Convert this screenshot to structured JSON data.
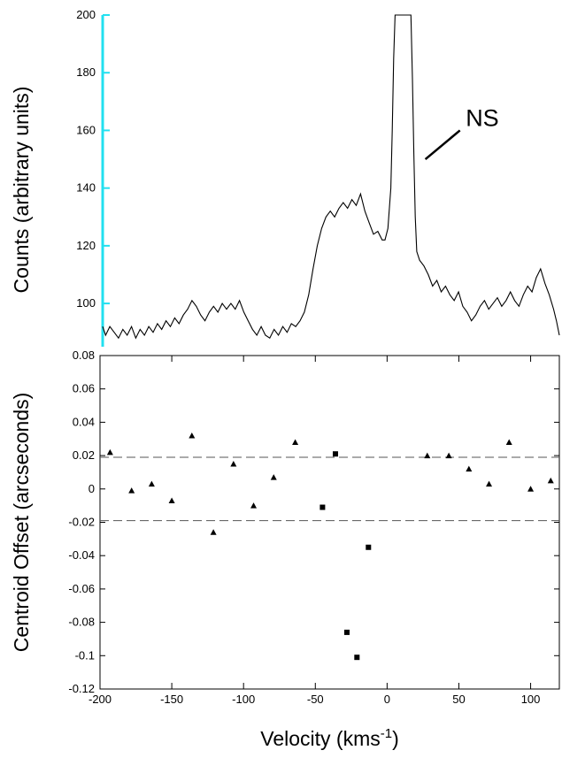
{
  "chart_data": [
    {
      "type": "line",
      "ylabel": "Counts (arbitrary units)",
      "xlim": [
        -200,
        117
      ],
      "ylim": [
        85,
        200
      ],
      "yticks": [
        100,
        120,
        140,
        160,
        180,
        200
      ],
      "axis_color": "#22e0f0",
      "series": [
        {
          "points": [
            [
              -200,
              92
            ],
            [
              -198,
              89
            ],
            [
              -195,
              92
            ],
            [
              -192,
              90
            ],
            [
              -189,
              88
            ],
            [
              -186,
              91
            ],
            [
              -183,
              89
            ],
            [
              -180,
              92
            ],
            [
              -177,
              88
            ],
            [
              -174,
              91
            ],
            [
              -171,
              89
            ],
            [
              -168,
              92
            ],
            [
              -165,
              90
            ],
            [
              -162,
              93
            ],
            [
              -159,
              91
            ],
            [
              -156,
              94
            ],
            [
              -153,
              92
            ],
            [
              -150,
              95
            ],
            [
              -147,
              93
            ],
            [
              -144,
              96
            ],
            [
              -141,
              98
            ],
            [
              -138,
              101
            ],
            [
              -135,
              99
            ],
            [
              -132,
              96
            ],
            [
              -129,
              94
            ],
            [
              -126,
              97
            ],
            [
              -123,
              99
            ],
            [
              -120,
              97
            ],
            [
              -117,
              100
            ],
            [
              -114,
              98
            ],
            [
              -111,
              100
            ],
            [
              -108,
              98
            ],
            [
              -105,
              101
            ],
            [
              -102,
              97
            ],
            [
              -99,
              94
            ],
            [
              -96,
              91
            ],
            [
              -93,
              89
            ],
            [
              -90,
              92
            ],
            [
              -87,
              89
            ],
            [
              -84,
              88
            ],
            [
              -81,
              91
            ],
            [
              -78,
              89
            ],
            [
              -75,
              92
            ],
            [
              -72,
              90
            ],
            [
              -69,
              93
            ],
            [
              -66,
              92
            ],
            [
              -63,
              94
            ],
            [
              -60,
              97
            ],
            [
              -57,
              103
            ],
            [
              -54,
              112
            ],
            [
              -51,
              120
            ],
            [
              -48,
              126
            ],
            [
              -45,
              130
            ],
            [
              -42,
              132
            ],
            [
              -39,
              130
            ],
            [
              -36,
              133
            ],
            [
              -33,
              135
            ],
            [
              -30,
              133
            ],
            [
              -27,
              136
            ],
            [
              -24,
              134
            ],
            [
              -21,
              138
            ],
            [
              -18,
              132
            ],
            [
              -15,
              128
            ],
            [
              -12,
              124
            ],
            [
              -9,
              125
            ],
            [
              -6,
              122
            ],
            [
              -4,
              122
            ],
            [
              -2,
              126
            ],
            [
              0,
              140
            ],
            [
              1,
              160
            ],
            [
              2,
              185
            ],
            [
              3,
              200
            ],
            [
              14,
              200
            ],
            [
              15,
              178
            ],
            [
              16,
              152
            ],
            [
              17,
              130
            ],
            [
              18,
              118
            ],
            [
              20,
              115
            ],
            [
              23,
              113
            ],
            [
              26,
              110
            ],
            [
              29,
              106
            ],
            [
              32,
              108
            ],
            [
              35,
              104
            ],
            [
              38,
              106
            ],
            [
              41,
              103
            ],
            [
              44,
              101
            ],
            [
              47,
              104
            ],
            [
              50,
              99
            ],
            [
              53,
              97
            ],
            [
              56,
              94
            ],
            [
              59,
              96
            ],
            [
              62,
              99
            ],
            [
              65,
              101
            ],
            [
              68,
              98
            ],
            [
              71,
              100
            ],
            [
              74,
              102
            ],
            [
              77,
              99
            ],
            [
              80,
              101
            ],
            [
              83,
              104
            ],
            [
              86,
              101
            ],
            [
              89,
              99
            ],
            [
              92,
              103
            ],
            [
              95,
              106
            ],
            [
              98,
              104
            ],
            [
              101,
              109
            ],
            [
              104,
              112
            ],
            [
              107,
              107
            ],
            [
              110,
              103
            ],
            [
              113,
              98
            ],
            [
              115,
              94
            ],
            [
              117,
              89
            ]
          ]
        }
      ],
      "annotations": [
        {
          "text": "NS",
          "x": 52,
          "y": 164,
          "pointer_to": [
            24,
            150
          ]
        }
      ]
    },
    {
      "type": "scatter",
      "xlabel": "Velocity (kms",
      "xlabel_sup": "-1",
      "xlabel_suffix": ")",
      "ylabel": "Centroid Offset (arcseconds)",
      "xlim": [
        -200,
        120
      ],
      "ylim": [
        -0.12,
        0.08
      ],
      "xticks": [
        -200,
        -150,
        -100,
        -50,
        0,
        50,
        100
      ],
      "yticks": [
        0.08,
        0.06,
        0.04,
        0.02,
        0,
        -0.02,
        -0.04,
        -0.06,
        -0.08,
        -0.1,
        -0.12
      ],
      "ytick_labels": [
        "0.08",
        "0.06",
        "0.04",
        "0.02",
        "0",
        "-0.02",
        "-0.04",
        "-0.06",
        "-0.08",
        "-0.1",
        "-0.12"
      ],
      "reference_lines": [
        0.019,
        -0.019
      ],
      "series": [
        {
          "marker": "triangle",
          "points": [
            [
              -193,
              0.022
            ],
            [
              -178,
              -0.001
            ],
            [
              -164,
              0.003
            ],
            [
              -150,
              -0.007
            ],
            [
              -136,
              0.032
            ],
            [
              -121,
              -0.026
            ],
            [
              -107,
              0.015
            ],
            [
              -93,
              -0.01
            ],
            [
              -79,
              0.007
            ],
            [
              -64,
              0.028
            ],
            [
              28,
              0.02
            ],
            [
              43,
              0.02
            ],
            [
              57,
              0.012
            ],
            [
              71,
              0.003
            ],
            [
              85,
              0.028
            ],
            [
              100,
              0.0
            ],
            [
              114,
              0.005
            ]
          ]
        },
        {
          "marker": "square",
          "points": [
            [
              -36,
              0.021
            ],
            [
              -45,
              -0.011
            ],
            [
              -13,
              -0.035
            ],
            [
              -28,
              -0.086
            ],
            [
              -21,
              -0.101
            ]
          ]
        }
      ]
    }
  ]
}
